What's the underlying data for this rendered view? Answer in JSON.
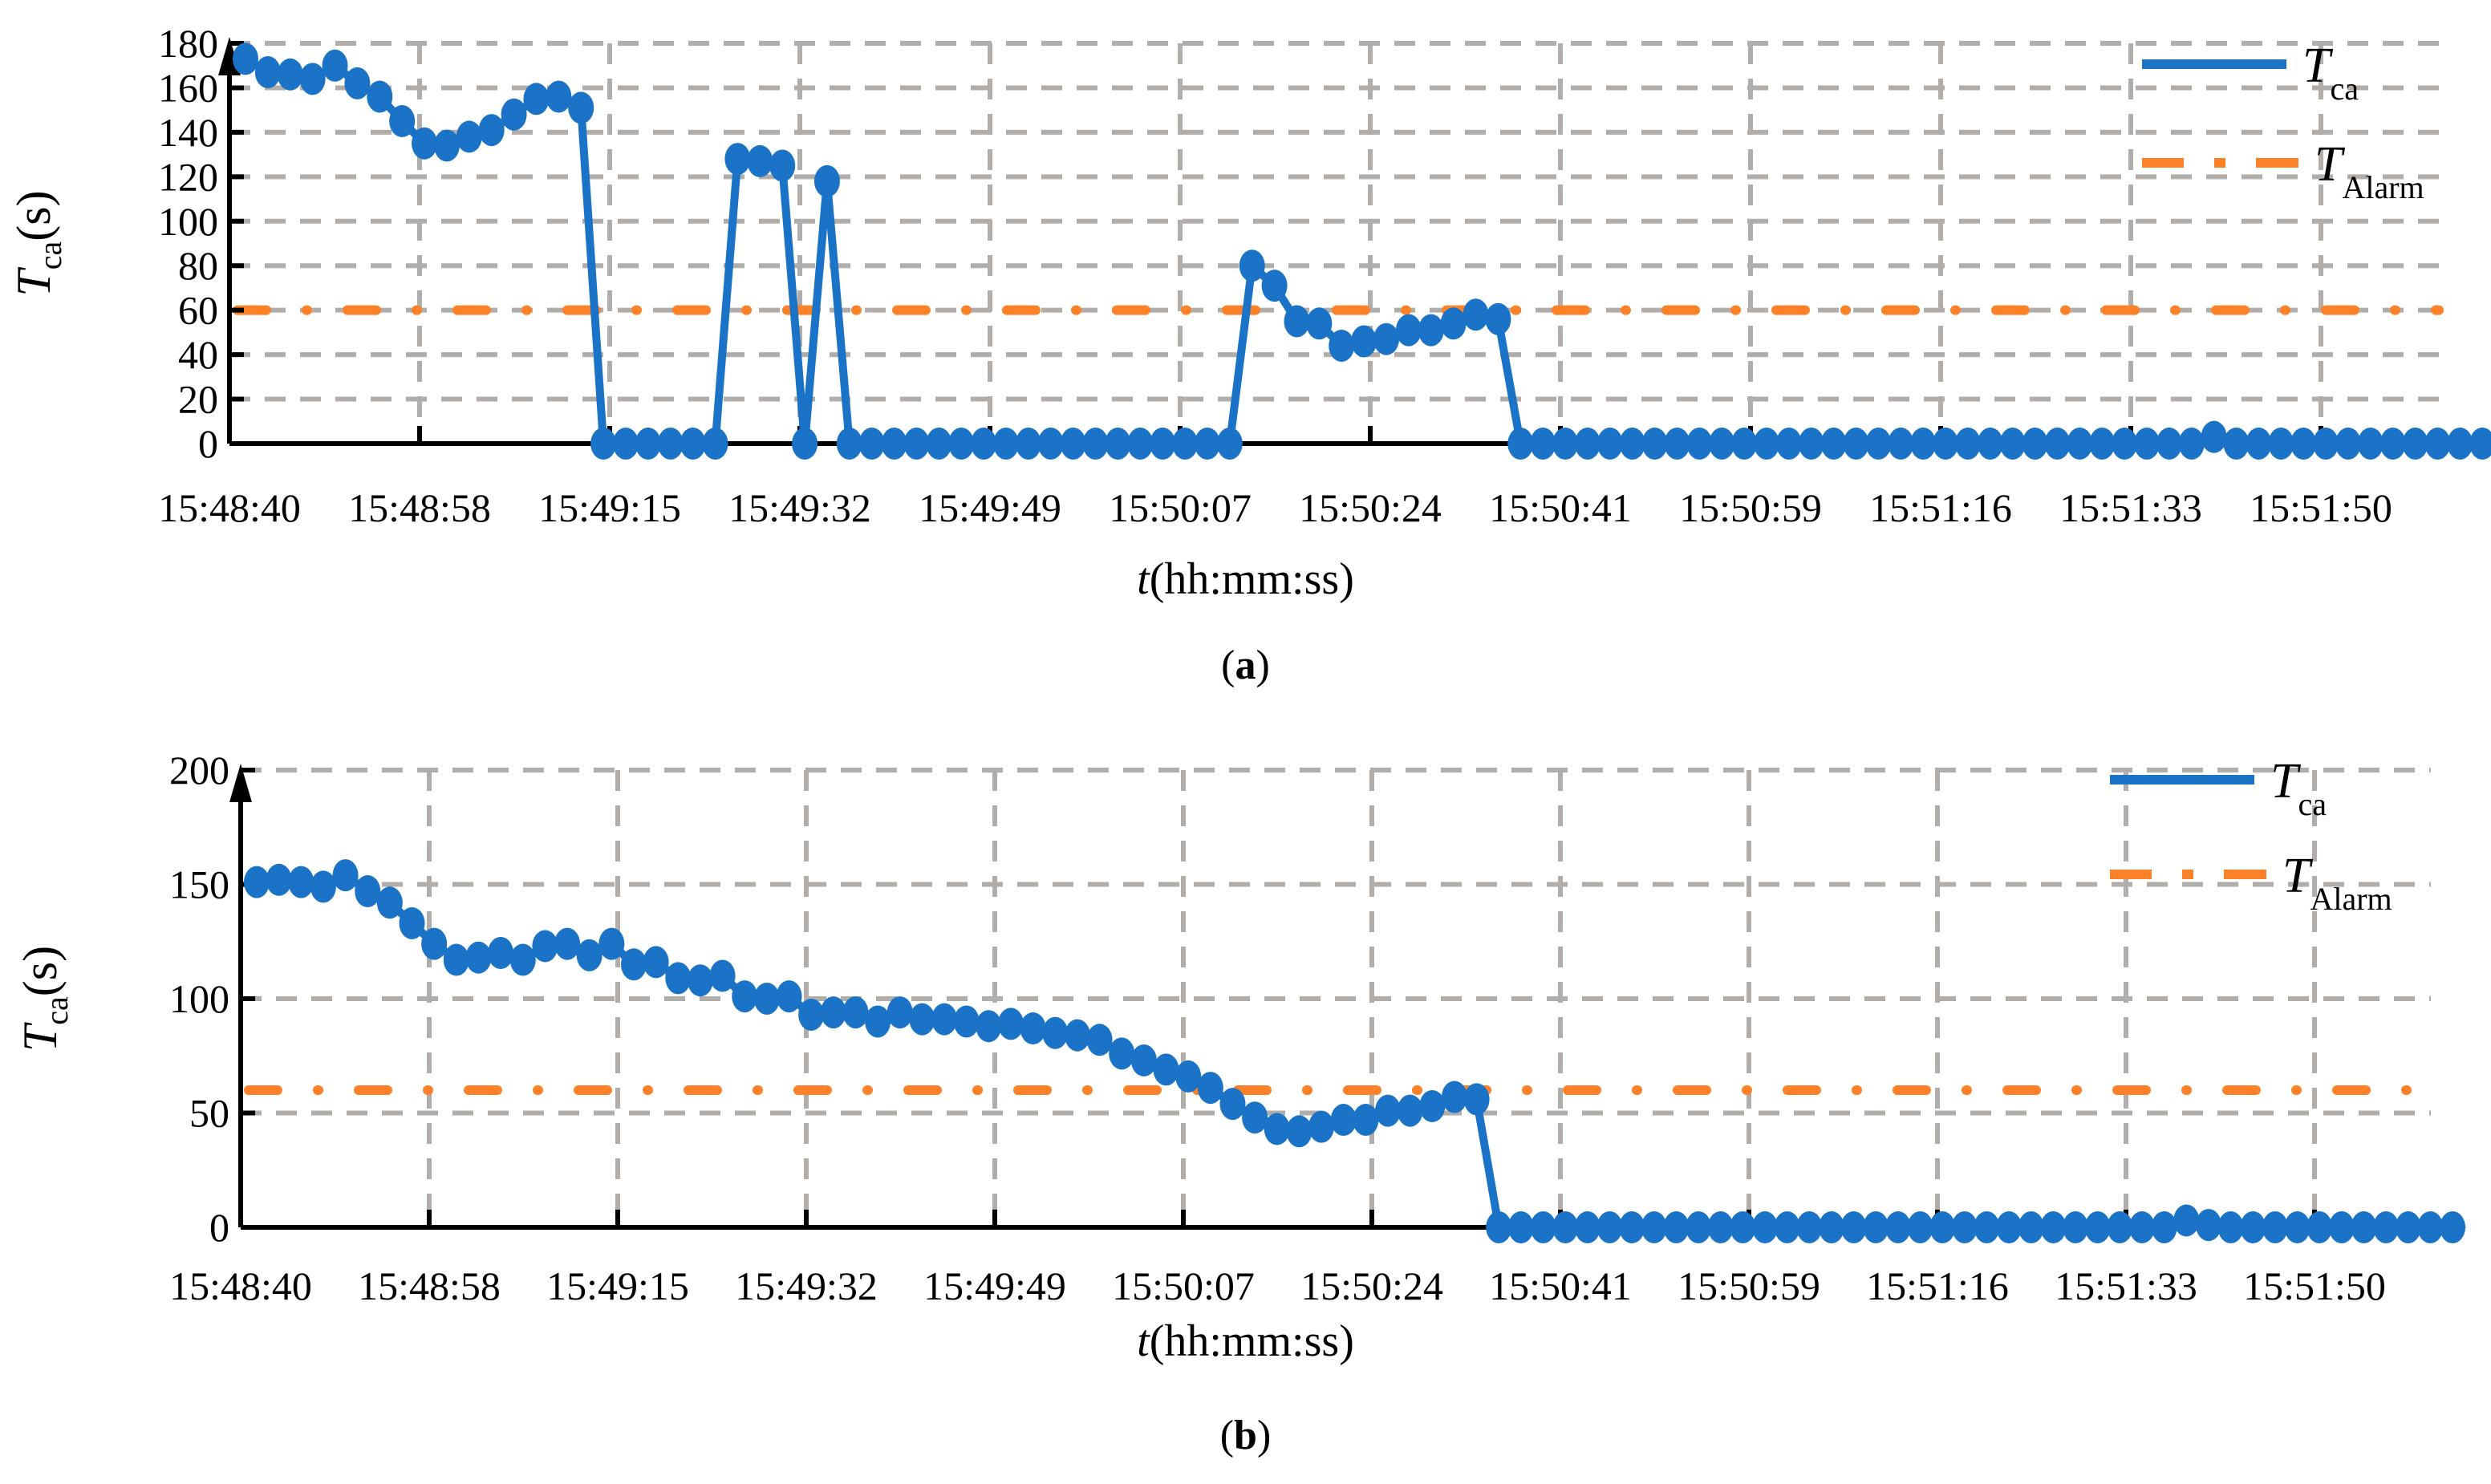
{
  "figure": {
    "panels": [
      {
        "id": "a",
        "caption_letter": "a",
        "ylabel_main": "T",
        "ylabel_sub": "ca",
        "ylabel_unit": "(s)",
        "xlabel_var": "t",
        "xlabel_unit": "(hh:mm:ss)",
        "legend": [
          {
            "main": "T",
            "sub": "ca",
            "style": "solid",
            "color": "#1a73c7"
          },
          {
            "main": "T",
            "sub": "Alarm",
            "style": "dash-dot",
            "color": "#fd8128"
          }
        ]
      },
      {
        "id": "b",
        "caption_letter": "b",
        "ylabel_main": "T",
        "ylabel_sub": "ca",
        "ylabel_unit": "(s)",
        "xlabel_var": "t",
        "xlabel_unit": "(hh:mm:ss)",
        "legend": [
          {
            "main": "T",
            "sub": "ca",
            "style": "solid",
            "color": "#1a73c7"
          },
          {
            "main": "T",
            "sub": "Alarm",
            "style": "dash-dot",
            "color": "#fd8128"
          }
        ]
      }
    ]
  },
  "colors": {
    "series": "#1a73c7",
    "alarm": "#fd8128",
    "grid": "#b0adab",
    "axis": "#000000"
  },
  "chart_data": [
    {
      "type": "line",
      "title": "(a)",
      "xlabel": "t(hh:mm:ss)",
      "ylabel": "T_ca(s)",
      "ylim": [
        0,
        180
      ],
      "yticks": [
        0,
        20,
        40,
        60,
        80,
        100,
        120,
        140,
        160,
        180
      ],
      "xtick_labels": [
        "15:48:40",
        "15:48:58",
        "15:49:15",
        "15:49:32",
        "15:49:49",
        "15:50:07",
        "15:50:24",
        "15:50:41",
        "15:50:59",
        "15:51:16",
        "15:51:33",
        "15:51:50"
      ],
      "grid": true,
      "legend_position": "upper right",
      "sample_interval_s": 2,
      "series": [
        {
          "name": "T_ca",
          "style": "solid line with circle markers",
          "values": [
            173,
            167,
            166,
            164,
            170,
            162,
            156,
            145,
            135,
            134,
            138,
            141,
            148,
            155,
            156,
            151,
            0,
            0,
            0,
            0,
            0,
            0,
            128,
            127,
            125,
            0,
            118,
            0,
            0,
            0,
            0,
            0,
            0,
            0,
            0,
            0,
            0,
            0,
            0,
            0,
            0,
            0,
            0,
            0,
            0,
            80,
            71,
            55,
            54,
            44,
            46,
            47,
            51,
            51,
            54,
            58,
            56,
            0,
            0,
            0,
            0,
            0,
            0,
            0,
            0,
            0,
            0,
            0,
            0,
            0,
            0,
            0,
            0,
            0,
            0,
            0,
            0,
            0,
            0,
            0,
            0,
            0,
            0,
            0,
            0,
            0,
            0,
            0,
            3,
            0,
            0,
            0,
            0,
            0,
            0,
            0,
            0,
            0,
            0,
            0,
            0
          ]
        },
        {
          "name": "T_Alarm",
          "style": "dash-dot line",
          "constant": 60
        }
      ]
    },
    {
      "type": "line",
      "title": "(b)",
      "xlabel": "t(hh:mm:ss)",
      "ylabel": "T_ca(s)",
      "ylim": [
        0,
        200
      ],
      "yticks": [
        0,
        50,
        100,
        150,
        200
      ],
      "xtick_labels": [
        "15:48:40",
        "15:48:58",
        "15:49:15",
        "15:49:32",
        "15:49:49",
        "15:50:07",
        "15:50:24",
        "15:50:41",
        "15:50:59",
        "15:51:16",
        "15:51:33",
        "15:51:50"
      ],
      "grid": true,
      "legend_position": "upper right",
      "sample_interval_s": 2,
      "series": [
        {
          "name": "T_ca",
          "style": "solid line with circle markers",
          "values": [
            151,
            152,
            151,
            149,
            154,
            147,
            142,
            133,
            124,
            117,
            118,
            120,
            117,
            123,
            124,
            119,
            124,
            115,
            116,
            109,
            108,
            110,
            101,
            100,
            101,
            93,
            94,
            94,
            90,
            94,
            91,
            91,
            90,
            88,
            89,
            87,
            85,
            84,
            82,
            76,
            73,
            69,
            66,
            61,
            54,
            48,
            43,
            42,
            44,
            47,
            47,
            51,
            51,
            53,
            57,
            56,
            0,
            0,
            0,
            0,
            0,
            0,
            0,
            0,
            0,
            0,
            0,
            0,
            0,
            0,
            0,
            0,
            0,
            0,
            0,
            0,
            0,
            0,
            0,
            0,
            0,
            0,
            0,
            0,
            0,
            0,
            0,
            3,
            1,
            0,
            0,
            0,
            0,
            0,
            0,
            0,
            0,
            0,
            0,
            0
          ]
        },
        {
          "name": "T_Alarm",
          "style": "dash-dot line",
          "constant": 60
        }
      ]
    }
  ]
}
